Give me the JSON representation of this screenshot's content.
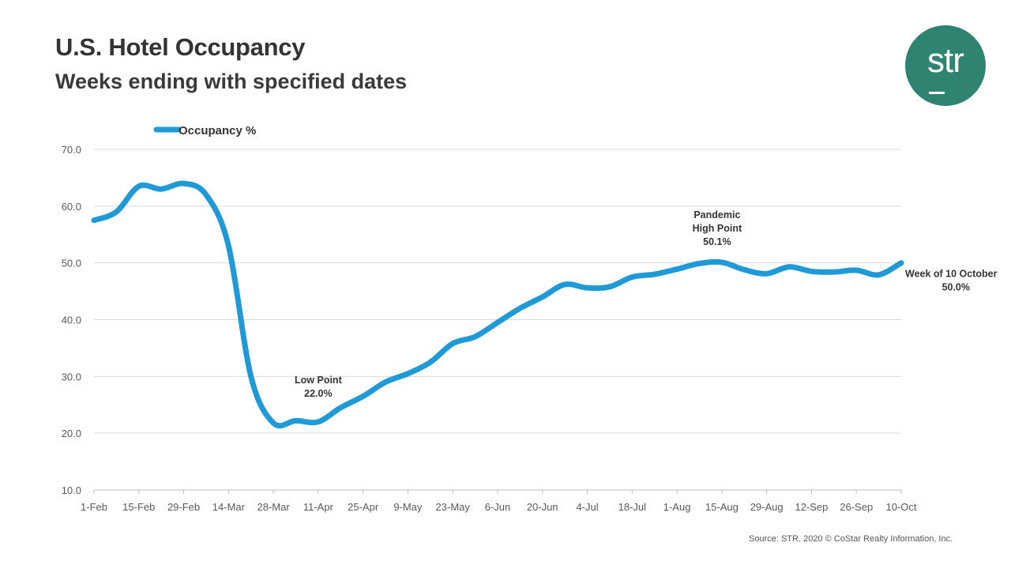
{
  "header": {
    "title": "U.S. Hotel Occupancy",
    "subtitle": "Weeks ending with specified dates"
  },
  "logo": {
    "text": "str",
    "color": "#2e8471"
  },
  "source": "Source: STR. 2020 © CoStar Realty Information, Inc.",
  "chart_data": {
    "type": "line",
    "title": "U.S. Hotel Occupancy",
    "subtitle": "Weeks ending with specified dates",
    "xlabel": "",
    "ylabel": "",
    "ylim": [
      10,
      70
    ],
    "yticks": [
      "10.0",
      "20.0",
      "30.0",
      "40.0",
      "50.0",
      "60.0",
      "70.0"
    ],
    "grid": true,
    "legend_position": "top-left",
    "x_tick_labels": [
      "1-Feb",
      "15-Feb",
      "29-Feb",
      "14-Mar",
      "28-Mar",
      "11-Apr",
      "25-Apr",
      "9-May",
      "23-May",
      "6-Jun",
      "20-Jun",
      "4-Jul",
      "18-Jul",
      "1-Aug",
      "15-Aug",
      "29-Aug",
      "12-Sep",
      "26-Sep",
      "10-Oct"
    ],
    "series": [
      {
        "name": "Occupancy %",
        "color": "#1f9ad6",
        "values": [
          57.5,
          59.0,
          63.5,
          63.0,
          64.0,
          62.0,
          53.0,
          30.0,
          21.8,
          22.2,
          22.0,
          24.5,
          26.5,
          29.0,
          30.5,
          32.5,
          35.8,
          37.0,
          39.5,
          42.0,
          44.0,
          46.2,
          45.6,
          45.8,
          47.5,
          48.0,
          48.9,
          49.9,
          50.1,
          48.8,
          48.1,
          49.3,
          48.5,
          48.4,
          48.7,
          47.9,
          50.0
        ]
      }
    ],
    "annotations": [
      {
        "lines": [
          "Low Point",
          "22.0%"
        ],
        "index": 10
      },
      {
        "lines": [
          "Pandemic",
          "High Point",
          "50.1%"
        ],
        "index": 28
      },
      {
        "lines": [
          "Week of 10 October",
          "50.0%"
        ],
        "index": 36
      }
    ]
  }
}
